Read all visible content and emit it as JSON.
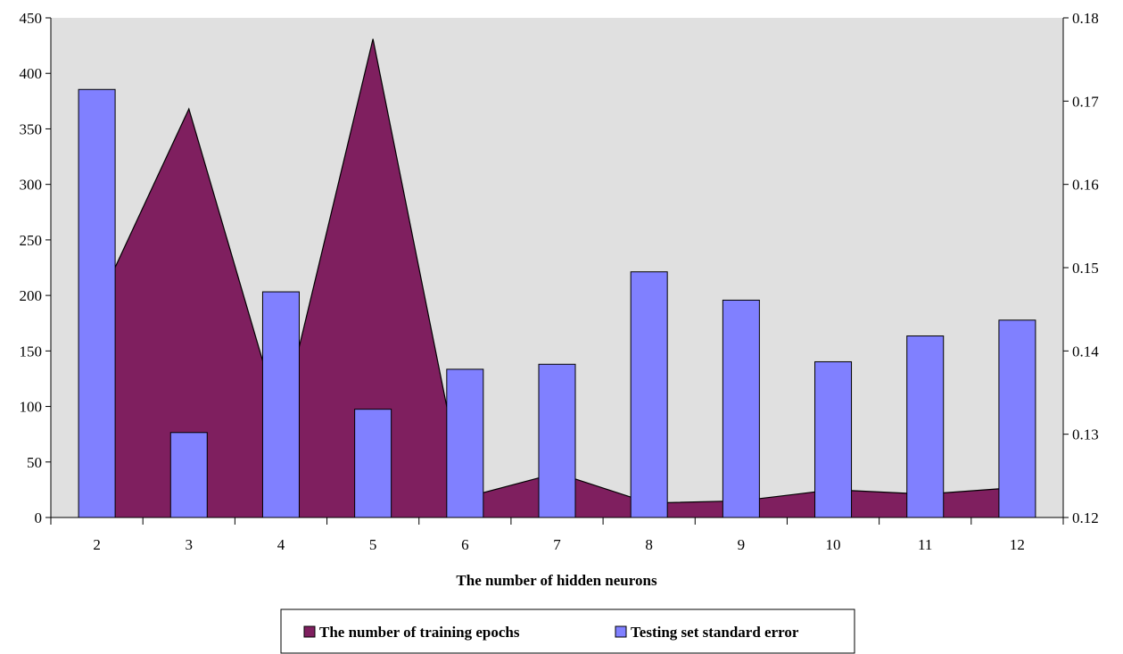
{
  "chart_data": {
    "type": "bar",
    "title": "",
    "xlabel": "The number of hidden neurons",
    "categories": [
      "2",
      "3",
      "4",
      "5",
      "6",
      "7",
      "8",
      "9",
      "10",
      "11",
      "12"
    ],
    "y_left": {
      "range": [
        0,
        450
      ],
      "ticks": [
        "0",
        "50",
        "100",
        "150",
        "200",
        "250",
        "300",
        "350",
        "400",
        "450"
      ],
      "tick_values": [
        0,
        50,
        100,
        150,
        200,
        250,
        300,
        350,
        400,
        450
      ]
    },
    "y_right": {
      "range": [
        0.12,
        0.18
      ],
      "ticks": [
        "0.12",
        "0.13",
        "0.14",
        "0.15",
        "0.16",
        "0.17",
        "0.18"
      ],
      "tick_values": [
        0.12,
        0.13,
        0.14,
        0.15,
        0.16,
        0.17,
        0.18
      ]
    },
    "series": [
      {
        "name": "The number of training epochs",
        "type": "area",
        "axis": "left",
        "color": "#7f1f5f",
        "values": [
          190,
          368,
          85,
          431,
          18,
          40,
          13,
          15,
          25,
          21,
          27
        ]
      },
      {
        "name": "Testing set standard error",
        "type": "bar",
        "axis": "right",
        "color": "#8080ff",
        "values": [
          0.1714,
          0.1302,
          0.1471,
          0.133,
          0.1378,
          0.1384,
          0.1495,
          0.1461,
          0.1387,
          0.1418,
          0.1437
        ]
      }
    ],
    "plot_background": "#e0e0e0",
    "grid": false,
    "legend_position": "bottom"
  }
}
